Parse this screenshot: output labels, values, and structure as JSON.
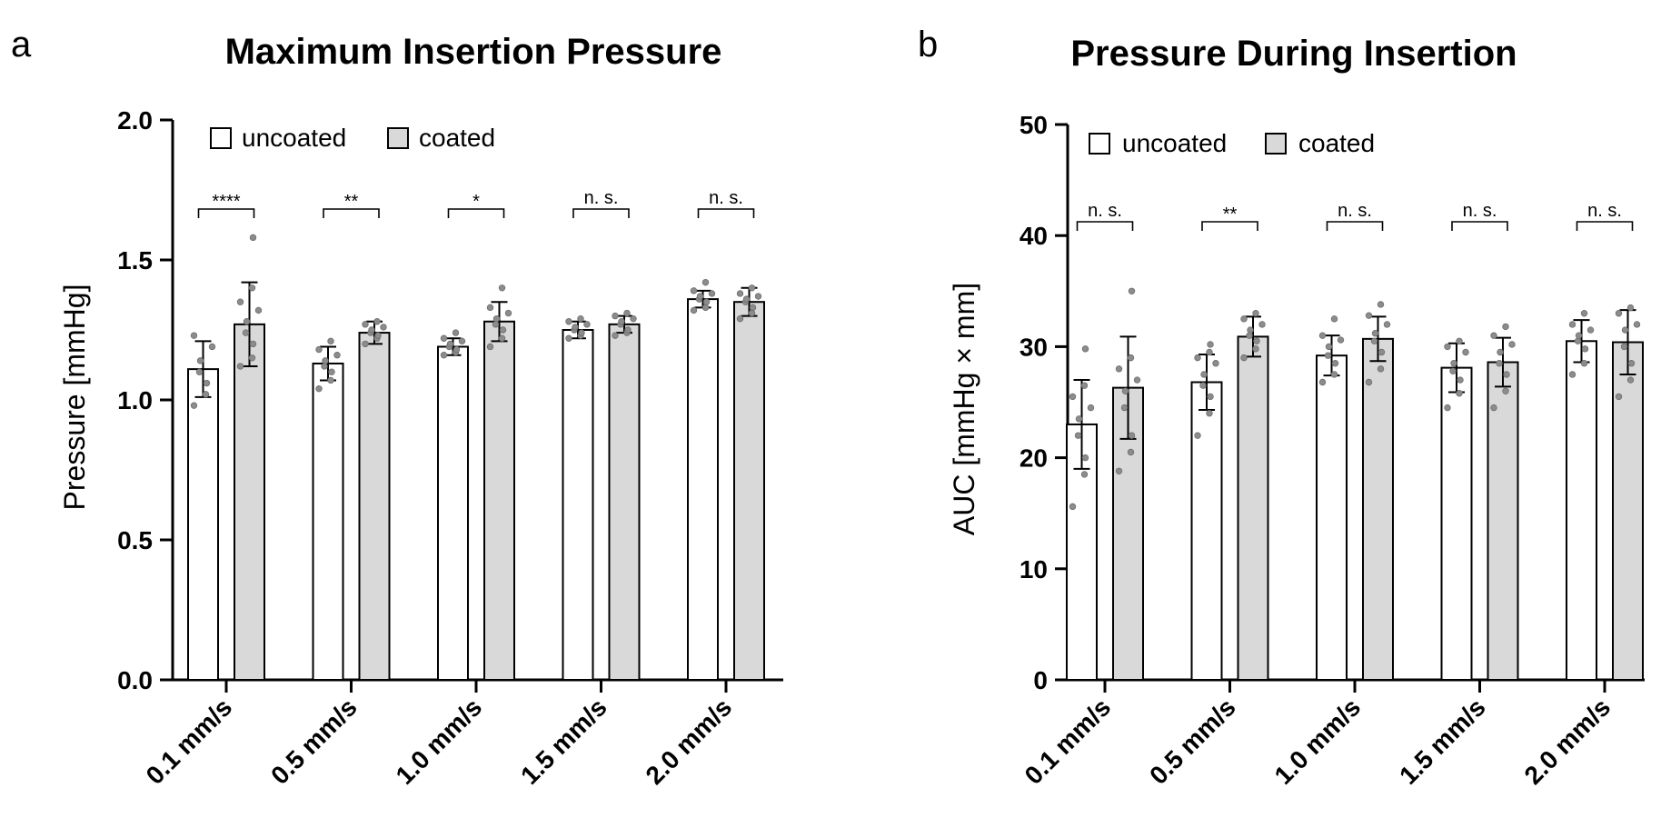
{
  "chart_data": [
    {
      "panel": "a",
      "type": "bar",
      "title": "Maximum Insertion Pressure",
      "xlabel": "",
      "ylabel": "Pressure [mmHg]",
      "ylim": [
        0.0,
        2.0
      ],
      "yticks": [
        "0.0",
        "0.5",
        "1.0",
        "1.5",
        "2.0"
      ],
      "categories": [
        "0.1 mm/s",
        "0.5 mm/s",
        "1.0 mm/s",
        "1.5 mm/s",
        "2.0 mm/s"
      ],
      "legend": [
        "uncoated",
        "coated"
      ],
      "legend_position": "top-left",
      "series": [
        {
          "name": "uncoated",
          "color": "#ffffff",
          "values": [
            1.11,
            1.13,
            1.19,
            1.25,
            1.36
          ],
          "sd": [
            0.1,
            0.06,
            0.03,
            0.03,
            0.03
          ],
          "points": [
            [
              0.98,
              1.02,
              1.06,
              1.1,
              1.14,
              1.19,
              1.23
            ],
            [
              1.04,
              1.07,
              1.1,
              1.12,
              1.14,
              1.16,
              1.18,
              1.21
            ],
            [
              1.16,
              1.17,
              1.18,
              1.19,
              1.2,
              1.21,
              1.22,
              1.24
            ],
            [
              1.22,
              1.23,
              1.24,
              1.25,
              1.26,
              1.27,
              1.28,
              1.29
            ],
            [
              1.32,
              1.33,
              1.35,
              1.36,
              1.37,
              1.38,
              1.39,
              1.42
            ]
          ]
        },
        {
          "name": "coated",
          "color": "#d9d9d9",
          "values": [
            1.27,
            1.24,
            1.28,
            1.27,
            1.35
          ],
          "sd": [
            0.15,
            0.04,
            0.07,
            0.03,
            0.05
          ],
          "points": [
            [
              1.12,
              1.15,
              1.2,
              1.24,
              1.28,
              1.32,
              1.35,
              1.4,
              1.58
            ],
            [
              1.2,
              1.22,
              1.23,
              1.24,
              1.25,
              1.26,
              1.27,
              1.28
            ],
            [
              1.19,
              1.22,
              1.25,
              1.27,
              1.29,
              1.31,
              1.33,
              1.4
            ],
            [
              1.23,
              1.24,
              1.25,
              1.27,
              1.28,
              1.29,
              1.3,
              1.31
            ],
            [
              1.29,
              1.31,
              1.33,
              1.35,
              1.36,
              1.37,
              1.38,
              1.4
            ]
          ]
        }
      ],
      "significance": [
        "****",
        "**",
        "*",
        "n. s.",
        "n. s."
      ]
    },
    {
      "panel": "b",
      "type": "bar",
      "title": "Pressure During Insertion",
      "xlabel": "",
      "ylabel": "AUC [mmHg × mm]",
      "ylim": [
        0,
        50
      ],
      "yticks": [
        "0",
        "10",
        "20",
        "30",
        "40",
        "50"
      ],
      "categories": [
        "0.1 mm/s",
        "0.5 mm/s",
        "1.0 mm/s",
        "1.5 mm/s",
        "2.0 mm/s"
      ],
      "legend": [
        "uncoated",
        "coated"
      ],
      "legend_position": "top-left",
      "series": [
        {
          "name": "uncoated",
          "color": "#ffffff",
          "values": [
            23.0,
            26.8,
            29.2,
            28.1,
            30.5
          ],
          "sd": [
            4.0,
            2.5,
            1.8,
            2.2,
            1.9
          ],
          "points": [
            [
              15.6,
              18.5,
              20.0,
              22.0,
              23.5,
              24.5,
              25.5,
              26.5,
              29.8
            ],
            [
              22.0,
              24.0,
              25.5,
              26.5,
              27.5,
              28.5,
              29.0,
              29.5,
              30.2
            ],
            [
              26.8,
              27.5,
              28.5,
              29.2,
              30.0,
              30.6,
              31.0,
              32.5
            ],
            [
              24.5,
              25.8,
              27.0,
              27.8,
              28.5,
              29.5,
              30.0,
              30.5
            ],
            [
              27.5,
              28.5,
              29.8,
              30.5,
              31.0,
              31.5,
              32.0,
              33.0
            ]
          ]
        },
        {
          "name": "coated",
          "color": "#d9d9d9",
          "values": [
            26.3,
            30.9,
            30.7,
            28.6,
            30.4
          ],
          "sd": [
            4.6,
            1.8,
            2.0,
            2.2,
            2.9
          ],
          "points": [
            [
              18.8,
              20.5,
              22.0,
              24.5,
              26.0,
              27.0,
              28.0,
              29.0,
              35.0
            ],
            [
              29.0,
              29.8,
              30.5,
              31.0,
              31.5,
              32.0,
              32.5,
              33.0
            ],
            [
              26.8,
              28.0,
              29.5,
              30.5,
              31.2,
              32.0,
              32.8,
              33.8
            ],
            [
              24.5,
              26.0,
              27.5,
              28.5,
              29.5,
              30.2,
              31.0,
              31.8
            ],
            [
              25.5,
              27.0,
              28.5,
              30.0,
              31.5,
              32.0,
              33.0,
              33.5
            ]
          ]
        }
      ],
      "significance": [
        "n. s.",
        "**",
        "n. s.",
        "n. s.",
        "n. s."
      ]
    }
  ]
}
